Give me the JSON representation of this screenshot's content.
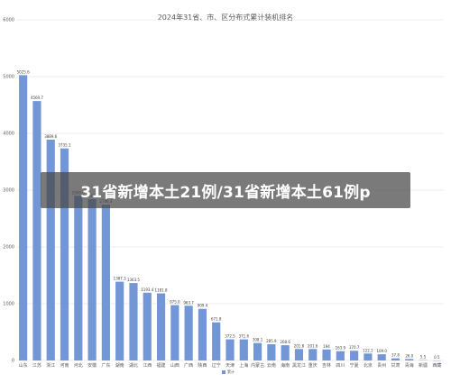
{
  "chart_data": {
    "type": "bar",
    "title": "2024年31省、市、区分布式累计装机排名",
    "xlabel": "",
    "ylabel": "",
    "ylim": [
      0,
      6000
    ],
    "yticks": [
      0,
      1000,
      2000,
      3000,
      4000,
      5000,
      6000
    ],
    "grid": true,
    "legend_position": "bottom",
    "categories": [
      "山东",
      "江苏",
      "浙江",
      "河南",
      "河北",
      "安徽",
      "广东",
      "湖南",
      "湖北",
      "江西",
      "福建",
      "山西",
      "广西",
      "陕西",
      "辽宁",
      "天津",
      "上海",
      "内蒙古",
      "云南",
      "海南",
      "黑龙江",
      "重庆",
      "吉林",
      "四川",
      "宁夏",
      "北京",
      "贵州",
      "甘肃",
      "青海",
      "新疆",
      "西藏"
    ],
    "value_labels": [
      "5025.6",
      "4569.7",
      "3889.6",
      "3735.1",
      "2900.0",
      "2842.9",
      "2746.3",
      "1387.3",
      "1363.5",
      "1193.4",
      "1181.8",
      "975.0",
      "963.7",
      "909.4",
      "671.8",
      "372.5",
      "371.6",
      "308.1",
      "285.9",
      "268.6",
      "201.8",
      "201.6",
      "194",
      "163.9",
      "170.7",
      "122.2",
      "109.0",
      "37.8",
      "26.0",
      "5.5",
      "0.5"
    ],
    "values": [
      5025.6,
      4569.7,
      3889.6,
      3735.1,
      2900.0,
      2842.9,
      2746.3,
      1387.3,
      1363.5,
      1193.4,
      1181.8,
      975.0,
      963.7,
      909.4,
      671.8,
      372.5,
      371.6,
      308.1,
      285.9,
      268.6,
      201.8,
      201.6,
      194,
      163.9,
      170.7,
      122.2,
      109.0,
      37.8,
      26.0,
      5.5,
      0.5
    ],
    "series": [
      {
        "values": [
          5025.6,
          4569.7,
          3889.6,
          3735.1,
          2900.0,
          2842.9,
          2746.3,
          1387.3,
          1363.5,
          1193.4,
          1181.8,
          975.0,
          963.7,
          909.4,
          671.8,
          372.5,
          371.6,
          308.1,
          285.9,
          268.6,
          201.8,
          201.6,
          194,
          163.9,
          170.7,
          122.2,
          109.0,
          37.8,
          26.0,
          5.5,
          0.5
        ]
      }
    ],
    "legend": [
      "累计"
    ]
  },
  "overlay": {
    "headline": "31省新增本土21例/31省新增本土61例p"
  },
  "colors": {
    "bar": "#7396d6",
    "overlay_bg": "#464646",
    "overlay_text": "#ffffff"
  }
}
